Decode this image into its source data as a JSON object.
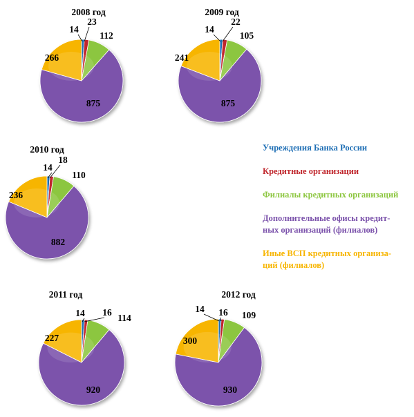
{
  "chart_data": {
    "type": "pie",
    "categories": [
      "Учреждения Банка России",
      "Кредитные организации",
      "Филиалы кредитных организаций",
      "Дополнительные офисы кредит-\nных организаций (филиалов)",
      "Иные ВСП кредитных организа-\nций (филиалов)"
    ],
    "colors": [
      "#1f6fb5",
      "#c0272d",
      "#8cc63f",
      "#7b52ab",
      "#f7b500"
    ],
    "pies": [
      {
        "title": "2008 год",
        "values": [
          14,
          23,
          112,
          875,
          266
        ]
      },
      {
        "title": "2009 год",
        "values": [
          14,
          22,
          105,
          875,
          241
        ]
      },
      {
        "title": "2010 год",
        "values": [
          14,
          18,
          110,
          882,
          236
        ]
      },
      {
        "title": "2011 год",
        "values": [
          14,
          16,
          114,
          920,
          227
        ]
      },
      {
        "title": "2012 год",
        "values": [
          14,
          16,
          109,
          930,
          300
        ]
      }
    ]
  }
}
